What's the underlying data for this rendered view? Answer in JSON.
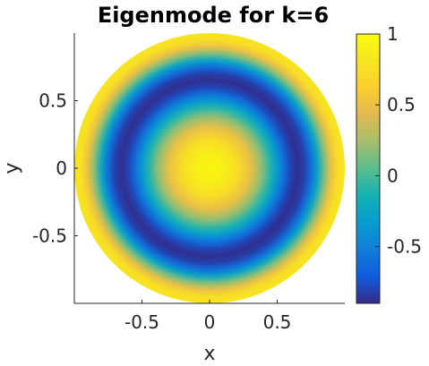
{
  "chart_data": {
    "type": "heatmap",
    "title": "Eigenmode for k=6",
    "xlabel": "x",
    "ylabel": "y",
    "xlim": [
      -1,
      1
    ],
    "ylim": [
      -1,
      1
    ],
    "x_ticks": [
      -0.5,
      0,
      0.5
    ],
    "y_ticks": [
      -0.5,
      0,
      0.5
    ],
    "x_tick_labels": [
      "-0.5",
      "0",
      "0.5"
    ],
    "y_tick_labels": [
      "0.5",
      "0",
      "-0.5"
    ],
    "domain": "unit disk",
    "colormap": "parula",
    "clim": [
      -0.9,
      1
    ],
    "colorbar_ticks": [
      -0.5,
      0,
      0.5,
      1
    ],
    "colorbar_tick_labels": [
      "-0.5",
      "0",
      "0.5",
      "1"
    ],
    "radial_profile": {
      "r": [
        0,
        0.1,
        0.2,
        0.3,
        0.38,
        0.45,
        0.5,
        0.55,
        0.6,
        0.65,
        0.7,
        0.75,
        0.8,
        0.85,
        0.9,
        0.95,
        1.0
      ],
      "value": [
        0.95,
        0.9,
        0.75,
        0.5,
        0.2,
        -0.1,
        -0.35,
        -0.6,
        -0.8,
        -0.88,
        -0.82,
        -0.6,
        -0.25,
        0.15,
        0.5,
        0.75,
        0.8
      ]
    },
    "grid": false,
    "box": true
  }
}
